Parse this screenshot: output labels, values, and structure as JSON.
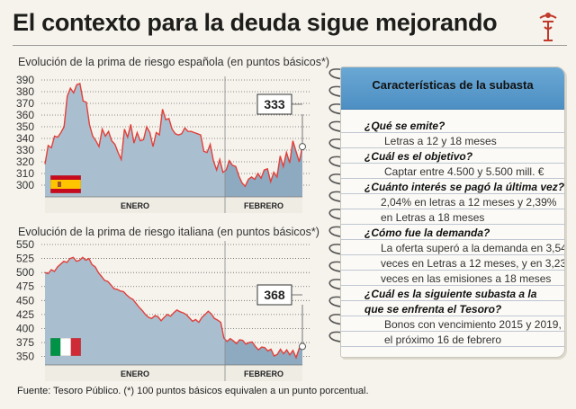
{
  "title": "El contexto para la deuda sigue mejorando",
  "source": "Fuente: Tesoro Público. (*) 100 puntos básicos equivalen a un punto porcentual.",
  "colors": {
    "line": "#e0403a",
    "area": "#a9bfd0",
    "area_dark": "#8eaac0",
    "panel_header": "#5a9bcc"
  },
  "icons": {
    "logo": "crest-logo-icon",
    "flag_es": "spain-flag-icon",
    "flag_it": "italy-flag-icon"
  },
  "panel": {
    "title": "Características de la subasta",
    "items": [
      {
        "q": "¿Qué se emite?",
        "a": [
          "Letras a 12 y 18 meses"
        ]
      },
      {
        "q": "¿Cuál es el objetivo?",
        "a": [
          "Captar entre 4.500 y 5.500 mill. €"
        ]
      },
      {
        "q": "¿Cuánto interés se pagó la última vez?",
        "a": [
          "2,04% en letras a 12 meses y 2,39%",
          "en Letras a 18 meses"
        ]
      },
      {
        "q": "¿Cómo fue la demanda?",
        "a": [
          "La oferta superó a la demanda en 3,54",
          "veces en Letras a 12 meses, y en 3,23",
          "veces  en las emisiones a 18 meses"
        ]
      },
      {
        "q": "¿Cuál es la siguiente subasta a la",
        "q2": "que se enfrenta el Tesoro?",
        "a": [
          "Bonos con vencimiento 2015 y 2019,",
          "el próximo 16 de febrero"
        ]
      }
    ]
  },
  "chart_data": [
    {
      "type": "area",
      "title": "Evolución de la prima de riesgo española (en puntos básicos*)",
      "ylim": [
        290,
        390
      ],
      "yticks": [
        300,
        310,
        320,
        330,
        340,
        350,
        360,
        370,
        380,
        390
      ],
      "x_labels": [
        "ENERO",
        "FEBRERO"
      ],
      "grid": true,
      "last_value_label": "333",
      "values": [
        318,
        334,
        332,
        342,
        341,
        345,
        350,
        376,
        383,
        379,
        386,
        387,
        372,
        371,
        352,
        342,
        338,
        333,
        348,
        342,
        346,
        338,
        335,
        328,
        322,
        348,
        341,
        352,
        336,
        345,
        338,
        339,
        350,
        345,
        333,
        345,
        343,
        365,
        356,
        357,
        348,
        344,
        343,
        344,
        349,
        346,
        346,
        345,
        344,
        343,
        329,
        328,
        335,
        321,
        313,
        322,
        311,
        313,
        321,
        317,
        316,
        308,
        302,
        299,
        305,
        307,
        305,
        310,
        306,
        313,
        314,
        303,
        311,
        307,
        325,
        316,
        328,
        319,
        338,
        329,
        320,
        333
      ]
    },
    {
      "type": "area",
      "title": "Evolución de la prima de riesgo italiana (en puntos básicos*)",
      "ylim": [
        335,
        550
      ],
      "yticks": [
        350,
        375,
        400,
        425,
        450,
        475,
        500,
        525,
        550
      ],
      "x_labels": [
        "ENERO",
        "FEBRERO"
      ],
      "grid": true,
      "last_value_label": "368",
      "values": [
        500,
        498,
        505,
        502,
        510,
        515,
        520,
        518,
        525,
        527,
        520,
        522,
        527,
        522,
        525,
        514,
        510,
        500,
        493,
        486,
        484,
        478,
        471,
        470,
        467,
        466,
        460,
        455,
        452,
        445,
        438,
        432,
        425,
        420,
        418,
        423,
        421,
        414,
        420,
        425,
        422,
        428,
        433,
        430,
        428,
        425,
        419,
        413,
        416,
        411,
        420,
        425,
        431,
        426,
        418,
        415,
        411,
        383,
        377,
        382,
        378,
        373,
        380,
        379,
        372,
        375,
        376,
        368,
        362,
        367,
        366,
        360,
        363,
        351,
        354,
        363,
        355,
        362,
        353,
        361,
        348,
        365,
        368
      ]
    }
  ]
}
